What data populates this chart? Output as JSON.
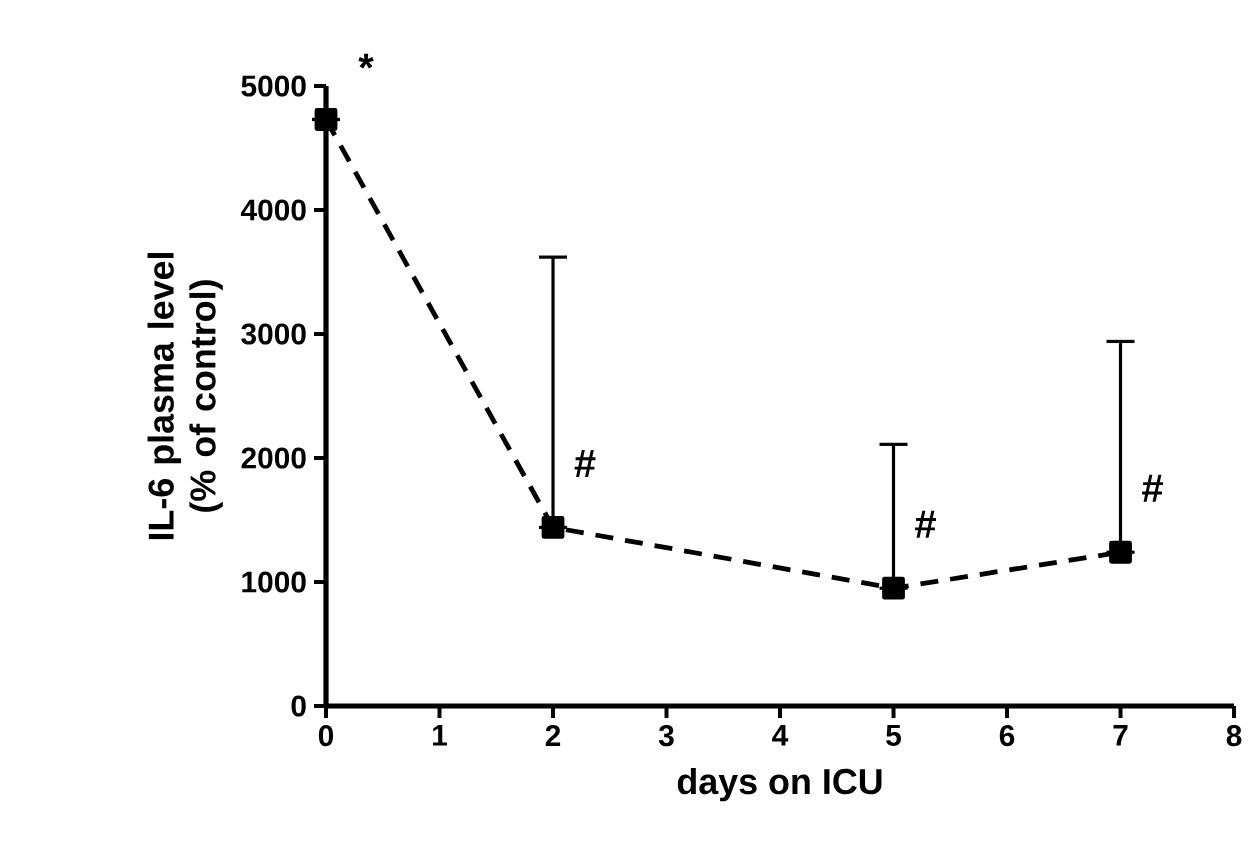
{
  "chart_data": {
    "type": "line",
    "xlabel": "days on ICU",
    "ylabel": "IL-6 plasma level (% of control)",
    "x": [
      0,
      2,
      5,
      7
    ],
    "series": [
      {
        "color": "#000000",
        "values": [
          4730,
          1440,
          950,
          1240
        ],
        "errors": [
          null,
          [
            1440,
            3620
          ],
          [
            950,
            2110
          ],
          [
            1240,
            2940
          ]
        ]
      }
    ],
    "xlim": [
      0,
      8
    ],
    "xticks": [
      0,
      1,
      2,
      3,
      4,
      5,
      6,
      7,
      8
    ],
    "ylim": [
      0,
      5000
    ],
    "yticks": [
      0,
      1000,
      2000,
      3000,
      4000,
      5000
    ],
    "marker": "square",
    "line_style": "dashed",
    "annotations": [
      {
        "text": "*",
        "x": 0,
        "y": 4730
      },
      {
        "text": "#",
        "x": 2,
        "y": 1440
      },
      {
        "text": "#",
        "x": 5,
        "y": 950
      },
      {
        "text": "#",
        "x": 7,
        "y": 1240
      }
    ]
  }
}
